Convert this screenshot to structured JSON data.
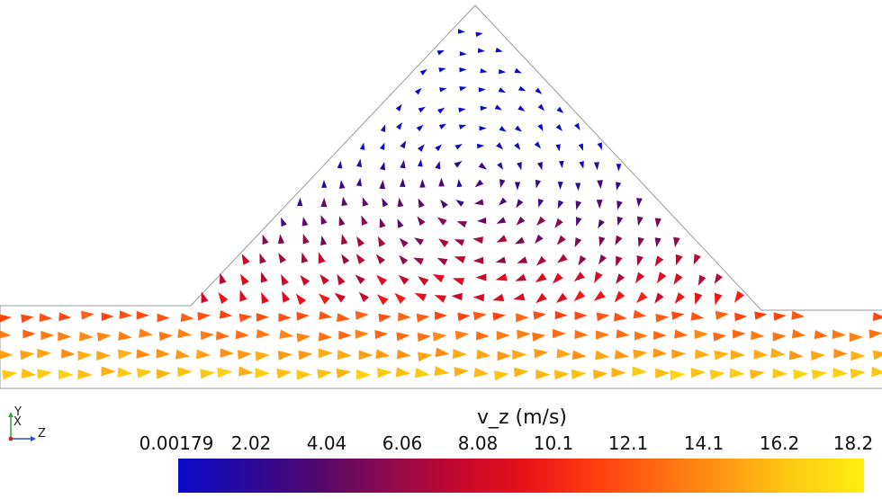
{
  "colorbar": {
    "title": "v_z (m/s)",
    "tick_labels": [
      "0.00179",
      "2.02",
      "4.04",
      "6.06",
      "8.08",
      "10.1",
      "12.1",
      "14.1",
      "16.2",
      "18.2"
    ],
    "range": [
      0.00179,
      18.2
    ],
    "colormap": "Blue-Red-Yellow",
    "gradient_stops": [
      "#0a0acc",
      "#2a0a9a",
      "#50086e",
      "#8a0a50",
      "#c00830",
      "#e8101a",
      "#ff3a10",
      "#ff6a12",
      "#ff9a14",
      "#ffcc12",
      "#ffee10"
    ]
  },
  "axes_triad": {
    "labels": [
      "Y",
      "X",
      "Z"
    ],
    "colors": {
      "y": "#2ea82e",
      "x": "#d42020",
      "z": "#2050d0"
    }
  },
  "field": {
    "outline_color": "#9a9a9a"
  }
}
